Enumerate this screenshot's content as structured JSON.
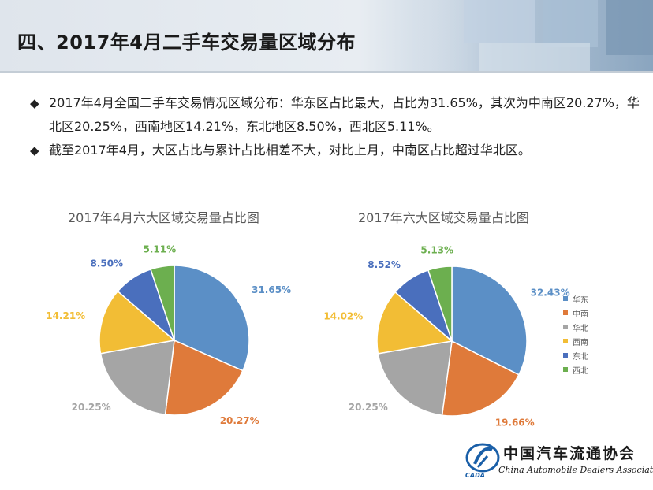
{
  "header": {
    "title": "四、2017年4月二手车交易量区域分布"
  },
  "bullets": [
    "2017年4月全国二手车交易情况区域分布：华东区占比最大，占比为31.65%，其次为中南区20.27%，华北区20.25%，西南地区14.21%，东北地区8.50%，西北区5.11%。",
    "截至2017年4月，大区占比与累计占比相差不大，对比上月，中南区占比超过华北区。"
  ],
  "bullet_marker": "◆",
  "logo": {
    "cn": "中国汽车流通协会",
    "en": "China Automobile Dealers Association",
    "abbr": "CADA"
  },
  "colors": {
    "华东": "#5b8fc6",
    "中南": "#df7a3a",
    "华北": "#a5a5a5",
    "西南": "#f2bd35",
    "东北": "#4a6fbd",
    "西北": "#6caf4f"
  },
  "chart_data": [
    {
      "type": "pie",
      "title": "2017年4月六大区域交易量占比图",
      "categories": [
        "华东",
        "中南",
        "华北",
        "西南",
        "东北",
        "西北"
      ],
      "values": [
        31.65,
        20.27,
        20.25,
        14.21,
        8.5,
        5.11
      ],
      "labels": [
        "31.65%",
        "20.27%",
        "20.25%",
        "14.21%",
        "8.50%",
        "5.11%"
      ]
    },
    {
      "type": "pie",
      "title": "2017年六大区域交易量占比图",
      "categories": [
        "华东",
        "中南",
        "华北",
        "西南",
        "东北",
        "西北"
      ],
      "values": [
        32.43,
        19.66,
        20.25,
        14.02,
        8.52,
        5.13
      ],
      "labels": [
        "32.43%",
        "19.66%",
        "20.25%",
        "14.02%",
        "8.52%",
        "5.13%"
      ],
      "legend": "right"
    }
  ]
}
